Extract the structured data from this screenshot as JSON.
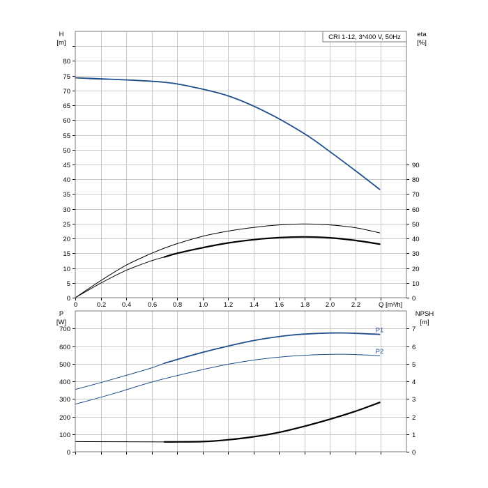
{
  "chart_data": [
    {
      "type": "line",
      "title": "CRI 1-12, 3*400 V, 50Hz",
      "x_axis": {
        "label": "Q [m³/h]",
        "range": [
          0,
          2.6
        ],
        "ticks": [
          "0",
          "0.2",
          "0.4",
          "0.6",
          "0.8",
          "1.0",
          "1.2",
          "1.4",
          "1.6",
          "1.8",
          "2.0",
          "2.2"
        ],
        "tick_values": [
          0,
          0.2,
          0.4,
          0.6,
          0.8,
          1.0,
          1.2,
          1.4,
          1.6,
          1.8,
          2.0,
          2.2
        ]
      },
      "y_left": {
        "label": "H",
        "unit": "[m]",
        "range": [
          0,
          90
        ],
        "ticks": [
          "0",
          "5",
          "10",
          "15",
          "20",
          "25",
          "30",
          "35",
          "40",
          "45",
          "50",
          "55",
          "60",
          "65",
          "70",
          "75",
          "80"
        ],
        "tick_values": [
          0,
          5,
          10,
          15,
          20,
          25,
          30,
          35,
          40,
          45,
          50,
          55,
          60,
          65,
          70,
          75,
          80
        ]
      },
      "y_right": {
        "label": "eta",
        "unit": "[%]",
        "range": [
          0,
          180
        ],
        "ticks": [
          "0",
          "10",
          "20",
          "30",
          "40",
          "50",
          "60",
          "70",
          "80",
          "90"
        ],
        "tick_values": [
          0,
          10,
          20,
          30,
          40,
          50,
          60,
          70,
          80,
          90
        ]
      },
      "grid": true,
      "series": [
        {
          "axis": "left",
          "color": "#1f4e8c",
          "width": 1.8,
          "x": [
            0.0,
            0.4,
            0.7,
            0.9,
            1.2,
            1.5,
            1.8,
            2.0,
            2.2,
            2.39
          ],
          "y": [
            74.3,
            73.6,
            72.8,
            71.4,
            68.2,
            62.7,
            55.4,
            49.3,
            42.9,
            36.6
          ]
        },
        {
          "axis": "left",
          "color": "#1f4e8c",
          "width": 1.0,
          "x": [
            0.0,
            0.1,
            0.2,
            0.4,
            0.7
          ],
          "y": [
            74.3,
            74.0,
            73.8,
            73.6,
            72.8
          ]
        },
        {
          "axis": "right",
          "color": "#000000",
          "width": 1.0,
          "x": [
            0.0,
            0.2,
            0.4,
            0.6,
            0.7,
            0.8,
            1.0,
            1.2,
            1.4,
            1.6,
            1.8,
            2.0,
            2.2,
            2.39
          ],
          "y": [
            0,
            11.5,
            22,
            30,
            33.5,
            36.5,
            41.5,
            45,
            47.5,
            49.2,
            49.8,
            49.2,
            47.3,
            43.8
          ]
        },
        {
          "axis": "right",
          "color": "#000000",
          "width": 1.0,
          "x": [
            0.0,
            0.2,
            0.4,
            0.6,
            0.7
          ],
          "y": [
            0,
            9.8,
            18.5,
            25,
            27.5
          ]
        },
        {
          "axis": "right",
          "color": "#000000",
          "width": 2.2,
          "x": [
            0.7,
            0.8,
            1.0,
            1.2,
            1.4,
            1.6,
            1.8,
            2.0,
            2.2,
            2.39
          ],
          "y": [
            27.5,
            30,
            33.8,
            37,
            39.2,
            40.6,
            41.1,
            40.5,
            38.7,
            36.2
          ]
        }
      ]
    },
    {
      "type": "line",
      "x_axis": {
        "range": [
          0,
          2.6
        ],
        "tick_values": [
          0,
          0.2,
          0.4,
          0.6,
          0.8,
          1.0,
          1.2,
          1.4,
          1.6,
          1.8,
          2.0,
          2.2
        ]
      },
      "y_left": {
        "label": "P",
        "unit": "[W]",
        "range": [
          0,
          800
        ],
        "ticks": [
          "0",
          "100",
          "200",
          "300",
          "400",
          "500",
          "600",
          "700"
        ],
        "tick_values": [
          0,
          100,
          200,
          300,
          400,
          500,
          600,
          700
        ]
      },
      "y_right": {
        "label": "NPSH",
        "unit": "[m]",
        "range": [
          0,
          8
        ],
        "ticks": [
          "0",
          "1",
          "2",
          "3",
          "4",
          "5",
          "6",
          "7"
        ],
        "tick_values": [
          0,
          1,
          2,
          3,
          4,
          5,
          6,
          7
        ]
      },
      "grid": true,
      "series": [
        {
          "name": "P1",
          "axis": "left",
          "color": "#1f4e8c",
          "width": 1.8,
          "x": [
            0.7,
            0.9,
            1.1,
            1.3,
            1.5,
            1.7,
            1.9,
            2.1,
            2.39
          ],
          "y": [
            503,
            545,
            583,
            617,
            644,
            663,
            672,
            675,
            667
          ]
        },
        {
          "axis": "left",
          "color": "#1f4e8c",
          "width": 1.0,
          "x": [
            0.0,
            0.2,
            0.4,
            0.6,
            0.7
          ],
          "y": [
            354,
            393,
            434,
            477,
            503
          ]
        },
        {
          "name": "P2",
          "axis": "left",
          "color": "#1f4e8c",
          "width": 1.0,
          "x": [
            0.0,
            0.3,
            0.6,
            0.9,
            1.2,
            1.5,
            1.8,
            2.1,
            2.39
          ],
          "y": [
            270,
            330,
            396,
            450,
            497,
            530,
            548,
            554,
            546
          ]
        },
        {
          "axis": "right",
          "color": "#000000",
          "width": 1.0,
          "x": [
            0.0,
            0.7
          ],
          "y": [
            0.58,
            0.56
          ]
        },
        {
          "axis": "right",
          "color": "#000000",
          "width": 2.2,
          "x": [
            0.7,
            1.0,
            1.2,
            1.4,
            1.6,
            1.8,
            2.0,
            2.2,
            2.39
          ],
          "y": [
            0.56,
            0.58,
            0.68,
            0.85,
            1.1,
            1.45,
            1.85,
            2.3,
            2.8
          ]
        }
      ]
    }
  ]
}
